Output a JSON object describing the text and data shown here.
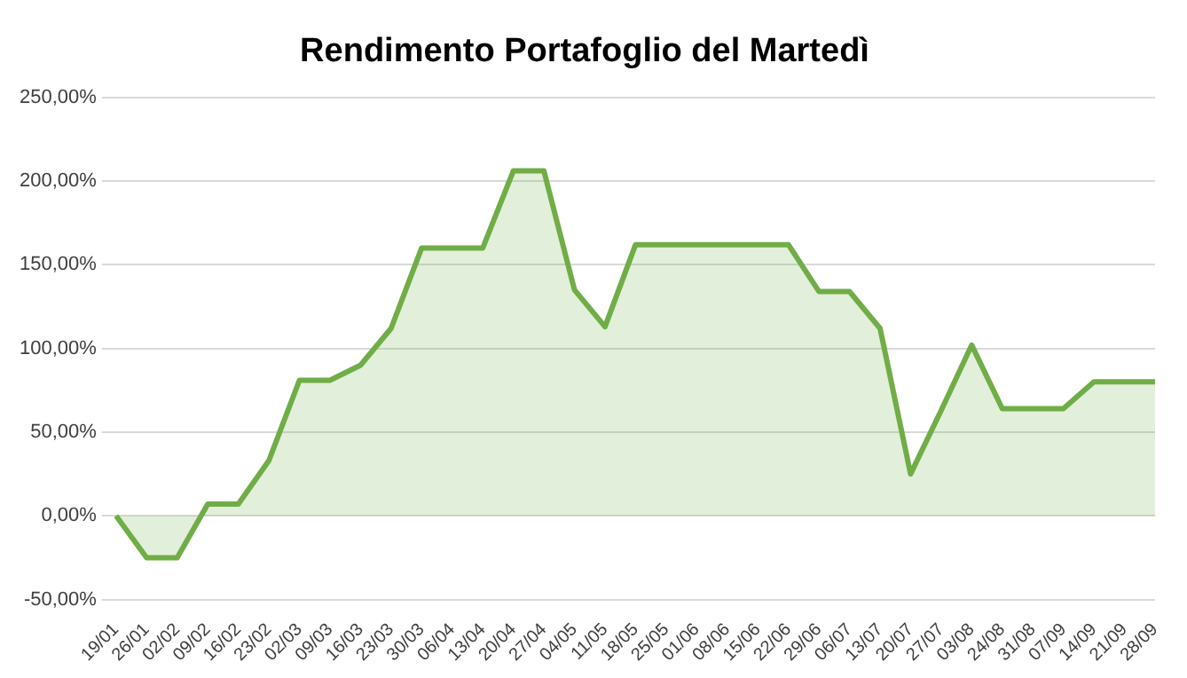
{
  "chart_data": {
    "type": "area",
    "title": "Rendimento Portafoglio del Martedì",
    "categories": [
      "19/01",
      "26/01",
      "02/02",
      "09/02",
      "16/02",
      "23/02",
      "02/03",
      "09/03",
      "16/03",
      "23/03",
      "30/03",
      "06/04",
      "13/04",
      "20/04",
      "27/04",
      "04/05",
      "11/05",
      "18/05",
      "25/05",
      "01/06",
      "08/06",
      "15/06",
      "22/06",
      "29/06",
      "06/07",
      "13/07",
      "20/07",
      "27/07",
      "03/08",
      "24/08",
      "31/08",
      "07/09",
      "14/09",
      "21/09",
      "28/09"
    ],
    "series": [
      {
        "color": "#70ad47",
        "values": [
          0,
          -25,
          -25,
          7,
          7,
          33,
          81,
          81,
          90,
          112,
          160,
          160,
          160,
          206,
          206,
          135,
          113,
          162,
          162,
          162,
          162,
          162,
          162,
          134,
          134,
          112,
          25,
          63,
          102,
          64,
          64,
          64,
          80,
          80,
          80
        ]
      }
    ],
    "ylim": [
      -50,
      250
    ],
    "yticks": [
      {
        "value": -50,
        "label": "-50,00%"
      },
      {
        "value": 0,
        "label": "0,00%"
      },
      {
        "value": 50,
        "label": "50,00%"
      },
      {
        "value": 100,
        "label": "100,00%"
      },
      {
        "value": 150,
        "label": "150,00%"
      },
      {
        "value": 200,
        "label": "200,00%"
      },
      {
        "value": 250,
        "label": "250,00%"
      }
    ],
    "grid": "y",
    "legend": false
  }
}
